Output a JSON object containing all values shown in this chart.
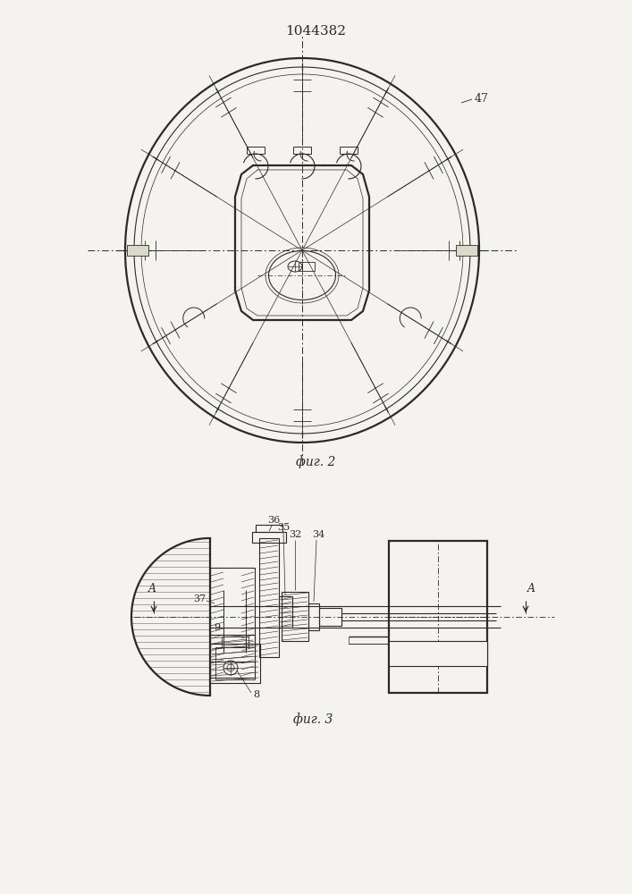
{
  "title": "1044382",
  "fig2_label": "фиг. 2",
  "fig3_label": "фиг. 3",
  "label_47": "47",
  "label_36": "36",
  "label_35": "35",
  "label_32": "32",
  "label_34": "34",
  "label_37": "37",
  "label_8": "8",
  "label_9": "9",
  "label_A": "A",
  "bg_color": "#f5f3ef",
  "line_color": "#2a2a2a",
  "line_width": 0.8,
  "thick_line": 1.6
}
